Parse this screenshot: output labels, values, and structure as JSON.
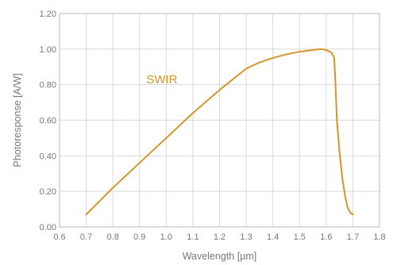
{
  "chart_data": {
    "type": "line",
    "title": "",
    "xlabel": "Wavelength [µm]",
    "ylabel": "Photoresponse [A/W]",
    "xlim": [
      0.6,
      1.8
    ],
    "ylim": [
      0.0,
      1.2
    ],
    "x_ticks": [
      "0.6",
      "0.7",
      "0.8",
      "0.9",
      "1.0",
      "1.1",
      "1.2",
      "1.3",
      "1.4",
      "1.5",
      "1.6",
      "1.7",
      "1.8"
    ],
    "y_ticks": [
      "0.00",
      "0.20",
      "0.40",
      "0.60",
      "0.80",
      "1.00",
      "1.20"
    ],
    "grid": true,
    "legend": "none",
    "annotations": [
      {
        "text": "SWIR",
        "x": 1.0,
        "y": 0.83
      }
    ],
    "series": [
      {
        "name": "SWIR",
        "color": "#D4952B",
        "x": [
          0.7,
          0.8,
          0.9,
          1.0,
          1.1,
          1.2,
          1.25,
          1.3,
          1.35,
          1.4,
          1.45,
          1.5,
          1.55,
          1.58,
          1.6,
          1.62,
          1.63,
          1.635,
          1.64,
          1.65,
          1.66,
          1.67,
          1.68,
          1.69,
          1.7
        ],
        "y": [
          0.07,
          0.22,
          0.36,
          0.5,
          0.64,
          0.77,
          0.83,
          0.89,
          0.925,
          0.95,
          0.97,
          0.985,
          0.995,
          1.0,
          0.995,
          0.98,
          0.95,
          0.8,
          0.6,
          0.42,
          0.28,
          0.18,
          0.11,
          0.08,
          0.07
        ]
      }
    ]
  }
}
